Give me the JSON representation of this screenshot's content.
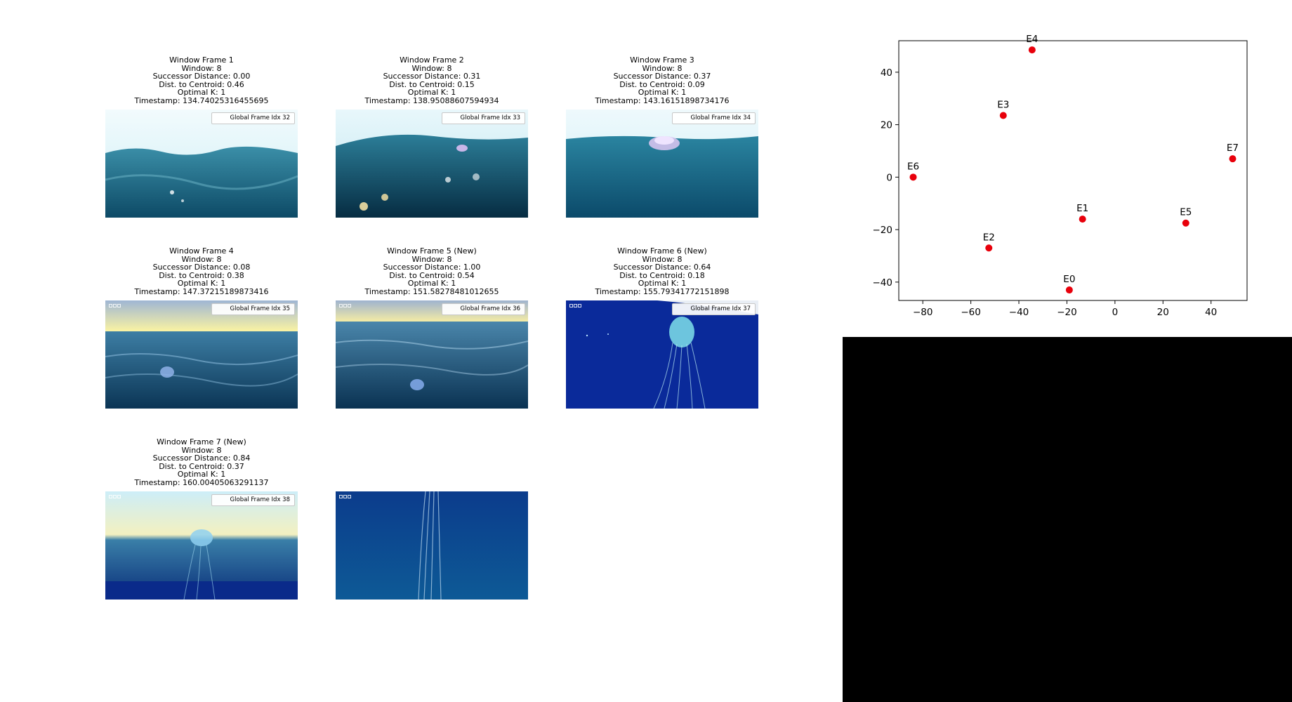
{
  "frames": [
    {
      "lines": [
        "Window Frame 1",
        "Window: 8",
        "Successor Distance: 0.00",
        "Dist. to Centroid: 0.46",
        "Optimal K: 1",
        "Timestamp: 134.74025316455695"
      ],
      "legend": "Global Frame Idx 32",
      "scene": "waves-bright",
      "logo": false
    },
    {
      "lines": [
        "Window Frame 2",
        "Window: 8",
        "Successor Distance: 0.31",
        "Dist. to Centroid: 0.15",
        "Optimal K: 1",
        "Timestamp: 138.95088607594934"
      ],
      "legend": "Global Frame Idx 33",
      "scene": "waves-sparkle",
      "logo": false
    },
    {
      "lines": [
        "Window Frame 3",
        "Window: 8",
        "Successor Distance: 0.37",
        "Dist. to Centroid: 0.09",
        "Optimal K: 1",
        "Timestamp: 143.16151898734176"
      ],
      "legend": "Global Frame Idx 34",
      "scene": "waves-float",
      "logo": false
    },
    {
      "lines": [
        "Window Frame 4",
        "Window: 8",
        "Successor Distance: 0.08",
        "Dist. to Centroid: 0.38",
        "Optimal K: 1",
        "Timestamp: 147.37215189873416"
      ],
      "legend": "Global Frame Idx 35",
      "scene": "sunset",
      "logo": true
    },
    {
      "lines": [
        "Window Frame 5 (New)",
        "Window: 8",
        "Successor Distance: 1.00",
        "Dist. to Centroid: 0.54",
        "Optimal K: 1",
        "Timestamp: 151.58278481012655"
      ],
      "legend": "Global Frame Idx 36",
      "scene": "sunset-float",
      "logo": true
    },
    {
      "lines": [
        "Window Frame 6 (New)",
        "Window: 8",
        "Successor Distance: 0.64",
        "Dist. to Centroid: 0.18",
        "Optimal K: 1",
        "Timestamp: 155.79341772151898"
      ],
      "legend": "Global Frame Idx 37",
      "scene": "underwater-jelly",
      "logo": true
    },
    {
      "lines": [
        "Window Frame 7 (New)",
        "Window: 8",
        "Successor Distance: 0.84",
        "Dist. to Centroid: 0.37",
        "Optimal K: 1",
        "Timestamp: 160.00405063291137"
      ],
      "legend": "Global Frame Idx 38",
      "scene": "jelly-surface",
      "logo": true
    },
    {
      "lines": [],
      "legend": "",
      "scene": "deep-tentacles",
      "logo": true
    }
  ],
  "chart_data": {
    "type": "scatter",
    "title": "",
    "xlabel": "",
    "ylabel": "",
    "xlim": [
      -90,
      55
    ],
    "ylim": [
      -47,
      52
    ],
    "xticks": [
      -80,
      -60,
      -40,
      -20,
      0,
      20,
      40
    ],
    "yticks": [
      -40,
      -20,
      0,
      20,
      40
    ],
    "point_color": "#e8000b",
    "points": [
      {
        "label": "E0",
        "x": -19,
        "y": -43
      },
      {
        "label": "E1",
        "x": -13.5,
        "y": -16
      },
      {
        "label": "E2",
        "x": -52.5,
        "y": -27
      },
      {
        "label": "E3",
        "x": -46.5,
        "y": 23.5
      },
      {
        "label": "E4",
        "x": -34.5,
        "y": 48.5
      },
      {
        "label": "E5",
        "x": 29.5,
        "y": -17.5
      },
      {
        "label": "E6",
        "x": -84,
        "y": 0
      },
      {
        "label": "E7",
        "x": 49,
        "y": 7
      }
    ]
  }
}
